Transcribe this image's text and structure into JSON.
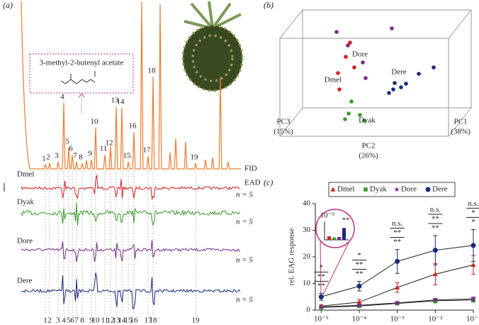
{
  "panel_a": {
    "label": "(a)",
    "compound": "3-methyl-2-butenyl acetate",
    "peaks": [
      "1",
      "2",
      "3",
      "4",
      "5",
      "6",
      "7",
      "8",
      "9",
      "10",
      "11",
      "12",
      "13",
      "14",
      "15",
      "16",
      "17",
      "18",
      "19"
    ],
    "fid_label": "FID",
    "ead_label": "EAD",
    "traces": [
      {
        "name": "Dmel",
        "color": "#d62020",
        "n": "n = 5"
      },
      {
        "name": "Dyak",
        "color": "#3a9a2a",
        "n": "n = 5"
      },
      {
        "name": "Dore",
        "color": "#7a2a8a",
        "n": "n = 5"
      },
      {
        "name": "Dere",
        "color": "#1a2a7a",
        "n": "n = 5"
      }
    ]
  },
  "panel_b": {
    "label": "(b)",
    "groups": [
      "Dore",
      "Dmel",
      "Dyak",
      "Dere"
    ],
    "axes": [
      {
        "name": "PC1",
        "share": "(38%)"
      },
      {
        "name": "PC2",
        "share": "(26%)"
      },
      {
        "name": "PC3",
        "share": "(15%)"
      }
    ]
  },
  "chart_data": [
    {
      "type": "line",
      "label": "(c)",
      "ylabel": "rel. EAG response",
      "log_x": true,
      "x": [
        1e-05,
        0.0001,
        0.001,
        0.01,
        0.1
      ],
      "xlim": [
        7e-06,
        0.1
      ],
      "xticks": [
        {
          "value": 1e-05,
          "label": "10⁻⁵"
        },
        {
          "value": 0.0001,
          "label": "10⁻⁴"
        },
        {
          "value": 0.001,
          "label": "10⁻³"
        },
        {
          "value": 0.01,
          "label": "10⁻²"
        },
        {
          "value": 0.1,
          "label": "10⁻¹"
        }
      ],
      "ylim": [
        0,
        40
      ],
      "yticks": [
        0,
        10,
        20,
        30,
        40
      ],
      "series": [
        {
          "name": "Dmel",
          "color": "#d62020",
          "marker": "triangle",
          "values": [
            1.5,
            3,
            8.5,
            13.5,
            17
          ],
          "errors": [
            0.5,
            1,
            1.8,
            4,
            3.5
          ]
        },
        {
          "name": "Dyak",
          "color": "#3a9a2a",
          "marker": "square",
          "values": [
            1,
            1.5,
            2.5,
            3.5,
            3.8
          ],
          "errors": [
            0.3,
            0.5,
            0.5,
            0.8,
            0.8
          ]
        },
        {
          "name": "Dore",
          "color": "#7a2a8a",
          "marker": "star",
          "values": [
            1.2,
            1.8,
            2.7,
            3.8,
            4.2
          ],
          "errors": [
            0.3,
            0.4,
            0.5,
            0.6,
            0.7
          ]
        },
        {
          "name": "Dere",
          "color": "#1a2a7a",
          "marker": "circle",
          "values": [
            5,
            9,
            18.3,
            22.5,
            24.3
          ],
          "errors": [
            1.3,
            1.8,
            4.5,
            5.5,
            6
          ]
        }
      ],
      "significance": [
        [
          "*",
          "**",
          "**"
        ],
        [
          "*",
          "**",
          "**"
        ],
        [
          "n.s.",
          "**",
          "**"
        ],
        [
          "n.s.",
          "**",
          "**"
        ],
        [
          "n.s.",
          "*",
          "*"
        ]
      ],
      "inset_label": "10⁻⁵",
      "inset_significance": "**"
    }
  ]
}
